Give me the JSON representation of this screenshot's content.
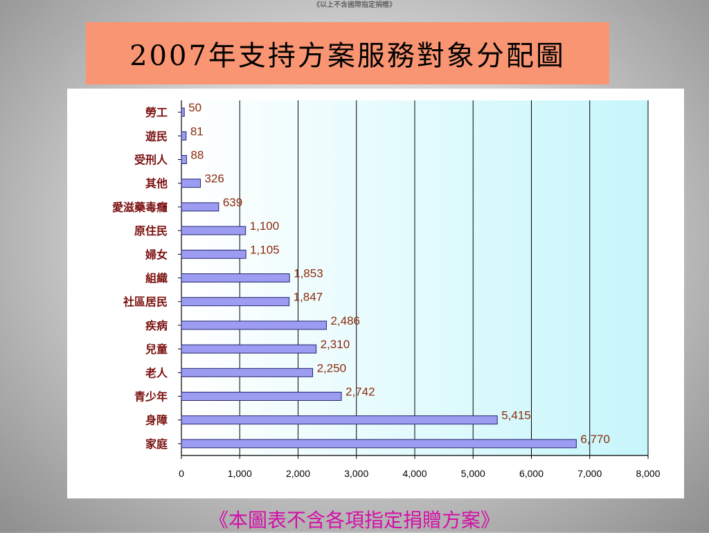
{
  "slide": {
    "header_note": "《以上不含國際指定捐贈》",
    "title": "2007年支持方案服務對象分配圖",
    "footer_note": "《本圖表不含各項指定捐贈方案》"
  },
  "colors": {
    "bar_fill": "#9c9cf2",
    "bar_stroke": "#22226a",
    "value_label": "#8b2a0b",
    "category_label": "#7a0f0f",
    "plot_bg_left": "#ffffff",
    "plot_bg_right": "#c6f6fb",
    "gridline": "#000000",
    "title_bg": "#f99572",
    "footer_text": "#d40ea8"
  },
  "chart_data": {
    "type": "bar",
    "orientation": "horizontal",
    "categories": [
      "勞工",
      "遊民",
      "受刑人",
      "其他",
      "愛滋藥毒癮",
      "原住民",
      "婦女",
      "組織",
      "社區居民",
      "疾病",
      "兒童",
      "老人",
      "青少年",
      "身障",
      "家庭"
    ],
    "values": [
      50,
      81,
      88,
      326,
      639,
      1100,
      1105,
      1853,
      1847,
      2486,
      2310,
      2250,
      2742,
      5415,
      6770
    ],
    "value_labels": [
      "50",
      "81",
      "88",
      "326",
      "639",
      "1,100",
      "1,105",
      "1,853",
      "1,847",
      "2,486",
      "2,310",
      "2,250",
      "2,742",
      "5,415",
      "6,770"
    ],
    "xlim": [
      0,
      8000
    ],
    "ticks": [
      0,
      1000,
      2000,
      3000,
      4000,
      5000,
      6000,
      7000,
      8000
    ],
    "tick_labels": [
      "0",
      "1,000",
      "2,000",
      "3,000",
      "4,000",
      "5,000",
      "6,000",
      "7,000",
      "8,000"
    ],
    "grid": "vertical",
    "legend": "none",
    "title": "",
    "xlabel": "",
    "ylabel": ""
  }
}
